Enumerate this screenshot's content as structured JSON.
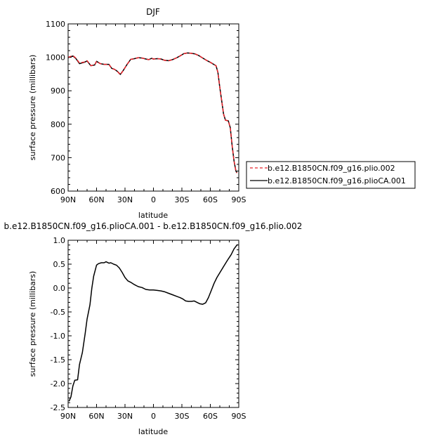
{
  "chart_data": [
    {
      "type": "line",
      "title": "DJF",
      "xlabel": "latitude",
      "ylabel": "surface pressure (millibars)",
      "xlim": [
        90,
        -90
      ],
      "ylim": [
        600,
        1100
      ],
      "x_ticks": [
        90,
        60,
        30,
        0,
        -30,
        -60,
        -90
      ],
      "x_tick_labels": [
        "90N",
        "60N",
        "30N",
        "0",
        "30S",
        "60S",
        "90S"
      ],
      "y_ticks": [
        600,
        700,
        800,
        900,
        1000,
        1100
      ],
      "y_tick_labels": [
        "600",
        "700",
        "800",
        "900",
        "1000",
        "1100"
      ],
      "legend": "right",
      "series": [
        {
          "name": "b.e12.B1850CN.f09_g16.plio.002",
          "color": "#e8232a",
          "dash": "dashed",
          "x": [
            90,
            85,
            82,
            78,
            73,
            70,
            66,
            62,
            60,
            56,
            52,
            47,
            44,
            41,
            38,
            35,
            32,
            28,
            24,
            20,
            16,
            12,
            8,
            5,
            2,
            0,
            -4,
            -8,
            -12,
            -16,
            -20,
            -24,
            -28,
            -32,
            -36,
            -40,
            -44,
            -48,
            -52,
            -56,
            -60,
            -63,
            -66,
            -68,
            -70,
            -72,
            -74,
            -76,
            -79,
            -81,
            -83,
            -85,
            -87,
            -88
          ],
          "y": [
            1000,
            1005,
            998,
            983,
            986,
            990,
            975,
            977,
            988,
            981,
            979,
            979,
            967,
            964,
            958,
            948,
            960,
            978,
            994,
            996,
            999,
            998,
            995,
            993,
            997,
            995,
            996,
            995,
            991,
            990,
            993,
            998,
            1004,
            1011,
            1013,
            1012,
            1010,
            1005,
            998,
            991,
            985,
            980,
            975,
            955,
            910,
            870,
            830,
            812,
            810,
            790,
            735,
            690,
            660,
            654
          ]
        },
        {
          "name": "b.e12.B1850CN.f09_g16.plioCA.001",
          "color": "#000000",
          "dash": "solid",
          "x": [
            90,
            85,
            82,
            78,
            73,
            70,
            66,
            62,
            60,
            56,
            52,
            47,
            44,
            41,
            38,
            35,
            32,
            28,
            24,
            20,
            16,
            12,
            8,
            5,
            2,
            0,
            -4,
            -8,
            -12,
            -16,
            -20,
            -24,
            -28,
            -32,
            -36,
            -40,
            -44,
            -48,
            -52,
            -56,
            -60,
            -63,
            -66,
            -68,
            -70,
            -72,
            -74,
            -76,
            -79,
            -81,
            -83,
            -85,
            -87,
            -88
          ],
          "y": [
            999,
            1004,
            997,
            981,
            985,
            989,
            975,
            977,
            988,
            981,
            979,
            979,
            967,
            964,
            958,
            949,
            960,
            978,
            994,
            996,
            999,
            998,
            995,
            993,
            997,
            995,
            996,
            995,
            991,
            990,
            993,
            998,
            1004,
            1011,
            1013,
            1012,
            1010,
            1005,
            998,
            991,
            985,
            980,
            975,
            955,
            910,
            870,
            830,
            812,
            810,
            790,
            735,
            690,
            660,
            655
          ]
        }
      ]
    },
    {
      "type": "line",
      "title": "b.e12.B1850CN.f09_g16.plioCA.001 - b.e12.B1850CN.f09_g16.plio.002",
      "xlabel": "latitude",
      "ylabel": "surface pressure (millibars)",
      "xlim": [
        90,
        -90
      ],
      "ylim": [
        -2.5,
        1.0
      ],
      "x_ticks": [
        90,
        60,
        30,
        0,
        -30,
        -60,
        -90
      ],
      "x_tick_labels": [
        "90N",
        "60N",
        "30N",
        "0",
        "30S",
        "60S",
        "90S"
      ],
      "y_ticks": [
        -2.5,
        -2.0,
        -1.5,
        -1.0,
        -0.5,
        0.0,
        0.5,
        1.0
      ],
      "y_tick_labels": [
        "-2.5",
        "-2.0",
        "-1.5",
        "-1.0",
        "-0.5",
        "0.0",
        "0.5",
        "1.0"
      ],
      "series": [
        {
          "color": "#000000",
          "dash": "solid",
          "x": [
            89,
            87,
            85,
            83,
            80,
            78,
            75,
            72,
            70,
            67,
            65,
            63,
            60,
            58,
            55,
            52,
            50,
            47,
            45,
            42,
            39,
            36,
            33,
            30,
            27,
            24,
            20,
            16,
            12,
            8,
            4,
            0,
            -4,
            -8,
            -12,
            -16,
            -20,
            -24,
            -28,
            -31,
            -34,
            -37,
            -40,
            -43,
            -46,
            -49,
            -52,
            -55,
            -58,
            -61,
            -64,
            -67,
            -70,
            -74,
            -78,
            -82,
            -85,
            -87,
            -88,
            -89
          ],
          "y": [
            -2.37,
            -2.28,
            -2.05,
            -1.93,
            -1.92,
            -1.6,
            -1.35,
            -0.95,
            -0.65,
            -0.35,
            0.0,
            0.25,
            0.48,
            0.51,
            0.53,
            0.53,
            0.55,
            0.52,
            0.53,
            0.5,
            0.48,
            0.42,
            0.33,
            0.22,
            0.15,
            0.12,
            0.07,
            0.03,
            0.01,
            -0.03,
            -0.04,
            -0.04,
            -0.05,
            -0.06,
            -0.08,
            -0.11,
            -0.14,
            -0.17,
            -0.2,
            -0.23,
            -0.27,
            -0.28,
            -0.28,
            -0.27,
            -0.3,
            -0.33,
            -0.34,
            -0.31,
            -0.2,
            -0.05,
            0.1,
            0.22,
            0.32,
            0.45,
            0.58,
            0.7,
            0.82,
            0.87,
            0.9,
            0.91
          ]
        }
      ]
    }
  ]
}
